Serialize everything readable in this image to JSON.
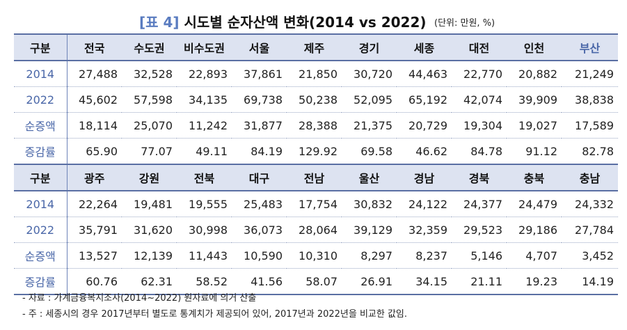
{
  "title": {
    "tag": "[표 4]",
    "text": "시도별 순자산액 변화(2014 vs 2022)",
    "unit": "(단위: 만원, %)"
  },
  "table1": {
    "header": [
      "구분",
      "전국",
      "수도권",
      "비수도권",
      "서울",
      "제주",
      "경기",
      "세종",
      "대전",
      "인천",
      "부산"
    ],
    "rows": [
      {
        "label": "2014",
        "values": [
          "27,488",
          "32,528",
          "22,893",
          "37,861",
          "21,850",
          "30,720",
          "44,463",
          "22,770",
          "20,882",
          "21,249"
        ]
      },
      {
        "label": "2022",
        "values": [
          "45,602",
          "57,598",
          "34,135",
          "69,738",
          "50,238",
          "52,095",
          "65,192",
          "42,074",
          "39,909",
          "38,838"
        ]
      },
      {
        "label": "순증액",
        "values": [
          "18,114",
          "25,070",
          "11,242",
          "31,877",
          "28,388",
          "21,375",
          "20,729",
          "19,304",
          "19,027",
          "17,589"
        ]
      },
      {
        "label": "증감률",
        "values": [
          "65.90",
          "77.07",
          "49.11",
          "84.19",
          "129.92",
          "69.58",
          "46.62",
          "84.78",
          "91.12",
          "82.78"
        ]
      }
    ]
  },
  "table2": {
    "header": [
      "구분",
      "광주",
      "강원",
      "전북",
      "대구",
      "전남",
      "울산",
      "경남",
      "경북",
      "충북",
      "충남"
    ],
    "rows": [
      {
        "label": "2014",
        "values": [
          "22,264",
          "19,481",
          "19,555",
          "25,483",
          "17,754",
          "30,832",
          "24,122",
          "24,377",
          "24,479",
          "24,332"
        ]
      },
      {
        "label": "2022",
        "values": [
          "35,791",
          "31,620",
          "30,998",
          "36,073",
          "28,064",
          "39,129",
          "32,359",
          "29,523",
          "29,186",
          "27,784"
        ]
      },
      {
        "label": "순증액",
        "values": [
          "13,527",
          "12,139",
          "11,443",
          "10,590",
          "10,310",
          "8,297",
          "8,237",
          "5,146",
          "4,707",
          "3,452"
        ]
      },
      {
        "label": "증감률",
        "values": [
          "60.76",
          "62.31",
          "58.52",
          "41.56",
          "58.07",
          "26.91",
          "34.15",
          "21.11",
          "19.23",
          "14.19"
        ]
      }
    ]
  },
  "notes": [
    "- 자료 : 가계금융복지조사(2014~2022) 원자료에 의거 산출",
    "- 주 : 세종시의 경우 2017년부터 별도로 통계치가 제공되어 있어, 2017년과 2022년을 비교한 값임."
  ],
  "colors": {
    "header_bg": "#dde3f1",
    "accent_blue": "#4a67a8",
    "rule": "#5a6fa3"
  }
}
